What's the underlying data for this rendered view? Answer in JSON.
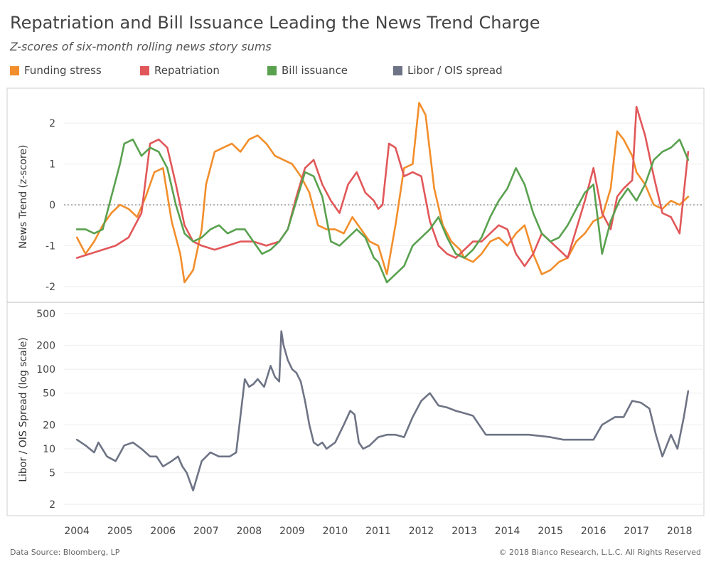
{
  "title": "Repatriation and Bill Issuance Leading the News Trend Charge",
  "subtitle": "Z-scores of six-month rolling news story sums",
  "legend": [
    {
      "label": "Funding stress",
      "color": "#f28e2b"
    },
    {
      "label": "Repatriation",
      "color": "#e15759"
    },
    {
      "label": "Bill issuance",
      "color": "#59a14f"
    },
    {
      "label": "Libor / OIS spread",
      "color": "#6e7485"
    }
  ],
  "footer": {
    "source": "Data Source: Bloomberg, LP",
    "copyright": "© 2018 Bianco Research, L.L.C. All Rights Reserved"
  },
  "chart_data": [
    {
      "type": "line",
      "ylabel": "News Trend (z-score)",
      "ylim": [
        -2.3,
        2.7
      ],
      "yticks": [
        "2",
        "1",
        "0",
        "-1",
        "-2"
      ],
      "ytick_values": [
        2,
        1,
        0,
        -1,
        -2
      ],
      "reference_line": 0,
      "series": [
        {
          "name": "Funding stress",
          "color": "#f28e2b",
          "x": [
            2004.0,
            2004.2,
            2004.4,
            2004.6,
            2004.8,
            2005.0,
            2005.2,
            2005.4,
            2005.6,
            2005.8,
            2006.0,
            2006.2,
            2006.4,
            2006.5,
            2006.7,
            2006.9,
            2007.0,
            2007.2,
            2007.4,
            2007.6,
            2007.8,
            2008.0,
            2008.2,
            2008.4,
            2008.6,
            2008.8,
            2009.0,
            2009.2,
            2009.4,
            2009.6,
            2009.8,
            2010.0,
            2010.2,
            2010.4,
            2010.6,
            2010.8,
            2011.0,
            2011.2,
            2011.4,
            2011.6,
            2011.8,
            2011.95,
            2012.1,
            2012.3,
            2012.5,
            2012.7,
            2012.9,
            2013.0,
            2013.2,
            2013.4,
            2013.6,
            2013.8,
            2014.0,
            2014.2,
            2014.4,
            2014.6,
            2014.8,
            2015.0,
            2015.2,
            2015.4,
            2015.6,
            2015.8,
            2016.0,
            2016.2,
            2016.4,
            2016.55,
            2016.7,
            2016.9,
            2017.0,
            2017.2,
            2017.4,
            2017.6,
            2017.8,
            2018.0,
            2018.2
          ],
          "y": [
            -0.8,
            -1.2,
            -0.9,
            -0.5,
            -0.2,
            0.0,
            -0.1,
            -0.3,
            0.2,
            0.8,
            0.9,
            -0.4,
            -1.2,
            -1.9,
            -1.6,
            -0.6,
            0.5,
            1.3,
            1.4,
            1.5,
            1.3,
            1.6,
            1.7,
            1.5,
            1.2,
            1.1,
            1.0,
            0.7,
            0.3,
            -0.5,
            -0.6,
            -0.6,
            -0.7,
            -0.3,
            -0.6,
            -0.9,
            -1.0,
            -1.7,
            -0.5,
            0.9,
            1.0,
            2.5,
            2.2,
            0.4,
            -0.5,
            -0.9,
            -1.1,
            -1.3,
            -1.4,
            -1.2,
            -0.9,
            -0.8,
            -1.0,
            -0.7,
            -0.5,
            -1.2,
            -1.7,
            -1.6,
            -1.4,
            -1.3,
            -0.9,
            -0.7,
            -0.4,
            -0.3,
            0.4,
            1.8,
            1.6,
            1.2,
            0.8,
            0.5,
            0.0,
            -0.1,
            0.1,
            0.0,
            0.2
          ]
        },
        {
          "name": "Repatriation",
          "color": "#e15759",
          "x": [
            2004.0,
            2004.3,
            2004.6,
            2004.9,
            2005.2,
            2005.5,
            2005.7,
            2005.9,
            2006.1,
            2006.3,
            2006.5,
            2006.7,
            2006.9,
            2007.2,
            2007.5,
            2007.8,
            2008.1,
            2008.4,
            2008.7,
            2008.9,
            2009.1,
            2009.3,
            2009.5,
            2009.7,
            2009.9,
            2010.1,
            2010.3,
            2010.5,
            2010.7,
            2010.9,
            2011.0,
            2011.1,
            2011.25,
            2011.4,
            2011.6,
            2011.8,
            2012.0,
            2012.2,
            2012.4,
            2012.6,
            2012.8,
            2013.0,
            2013.2,
            2013.4,
            2013.6,
            2013.8,
            2014.0,
            2014.2,
            2014.4,
            2014.6,
            2014.8,
            2015.0,
            2015.2,
            2015.4,
            2015.6,
            2015.8,
            2016.0,
            2016.2,
            2016.4,
            2016.55,
            2016.7,
            2016.9,
            2017.0,
            2017.2,
            2017.4,
            2017.6,
            2017.8,
            2018.0,
            2018.2
          ],
          "y": [
            -1.3,
            -1.2,
            -1.1,
            -1.0,
            -0.8,
            -0.2,
            1.5,
            1.6,
            1.4,
            0.5,
            -0.5,
            -0.9,
            -1.0,
            -1.1,
            -1.0,
            -0.9,
            -0.9,
            -1.0,
            -0.9,
            -0.6,
            0.2,
            0.9,
            1.1,
            0.5,
            0.1,
            -0.2,
            0.5,
            0.8,
            0.3,
            0.1,
            -0.1,
            0.0,
            1.5,
            1.4,
            0.7,
            0.8,
            0.7,
            -0.4,
            -1.0,
            -1.2,
            -1.3,
            -1.1,
            -0.9,
            -0.9,
            -0.7,
            -0.5,
            -0.6,
            -1.2,
            -1.5,
            -1.2,
            -0.7,
            -0.9,
            -1.1,
            -1.3,
            -0.6,
            0.1,
            0.9,
            -0.2,
            -0.6,
            0.2,
            0.4,
            0.6,
            2.4,
            1.7,
            0.7,
            -0.2,
            -0.3,
            -0.7,
            1.3
          ]
        },
        {
          "name": "Bill issuance",
          "color": "#59a14f",
          "x": [
            2004.0,
            2004.2,
            2004.4,
            2004.6,
            2004.8,
            2005.0,
            2005.1,
            2005.3,
            2005.5,
            2005.7,
            2005.9,
            2006.1,
            2006.3,
            2006.5,
            2006.7,
            2006.9,
            2007.1,
            2007.3,
            2007.5,
            2007.7,
            2007.9,
            2008.1,
            2008.3,
            2008.5,
            2008.7,
            2008.9,
            2009.1,
            2009.3,
            2009.5,
            2009.7,
            2009.9,
            2010.1,
            2010.3,
            2010.5,
            2010.7,
            2010.9,
            2011.0,
            2011.2,
            2011.4,
            2011.6,
            2011.8,
            2012.0,
            2012.2,
            2012.4,
            2012.6,
            2012.8,
            2013.0,
            2013.2,
            2013.4,
            2013.6,
            2013.8,
            2014.0,
            2014.2,
            2014.4,
            2014.6,
            2014.8,
            2015.0,
            2015.2,
            2015.4,
            2015.6,
            2015.8,
            2016.0,
            2016.2,
            2016.4,
            2016.6,
            2016.8,
            2017.0,
            2017.2,
            2017.4,
            2017.6,
            2017.8,
            2018.0,
            2018.2
          ],
          "y": [
            -0.6,
            -0.6,
            -0.7,
            -0.6,
            0.2,
            1.0,
            1.5,
            1.6,
            1.2,
            1.4,
            1.3,
            0.9,
            0.0,
            -0.7,
            -0.9,
            -0.8,
            -0.6,
            -0.5,
            -0.7,
            -0.6,
            -0.6,
            -0.9,
            -1.2,
            -1.1,
            -0.9,
            -0.6,
            0.1,
            0.8,
            0.7,
            0.2,
            -0.9,
            -1.0,
            -0.8,
            -0.6,
            -0.8,
            -1.3,
            -1.4,
            -1.9,
            -1.7,
            -1.5,
            -1.0,
            -0.8,
            -0.6,
            -0.3,
            -0.8,
            -1.2,
            -1.3,
            -1.1,
            -0.8,
            -0.3,
            0.1,
            0.4,
            0.9,
            0.5,
            -0.2,
            -0.7,
            -0.9,
            -0.8,
            -0.5,
            -0.1,
            0.3,
            0.5,
            -1.2,
            -0.4,
            0.1,
            0.4,
            0.1,
            0.5,
            1.1,
            1.3,
            1.4,
            1.6,
            1.1
          ]
        }
      ]
    },
    {
      "type": "line",
      "ylabel": "Libor / OIS Spread (log scale)",
      "scale": "log",
      "ylim": [
        1.6,
        600
      ],
      "yticks": [
        "500",
        "200",
        "100",
        "50",
        "20",
        "10",
        "5",
        "2"
      ],
      "ytick_values": [
        500,
        200,
        100,
        50,
        20,
        10,
        5,
        2
      ],
      "xlim": [
        2003.7,
        2018.4
      ],
      "xticks": [
        "2004",
        "2005",
        "2006",
        "2007",
        "2008",
        "2009",
        "2010",
        "2011",
        "2012",
        "2013",
        "2014",
        "2015",
        "2016",
        "2017",
        "2018"
      ],
      "series": [
        {
          "name": "Libor / OIS spread",
          "color": "#6e7485",
          "x": [
            2004.0,
            2004.2,
            2004.4,
            2004.5,
            2004.7,
            2004.9,
            2005.1,
            2005.3,
            2005.5,
            2005.7,
            2005.85,
            2006.0,
            2006.2,
            2006.35,
            2006.45,
            2006.55,
            2006.7,
            2006.9,
            2007.1,
            2007.3,
            2007.45,
            2007.55,
            2007.7,
            2007.9,
            2008.0,
            2008.1,
            2008.2,
            2008.35,
            2008.5,
            2008.6,
            2008.7,
            2008.75,
            2008.8,
            2008.9,
            2009.0,
            2009.1,
            2009.2,
            2009.3,
            2009.4,
            2009.5,
            2009.6,
            2009.7,
            2009.8,
            2010.0,
            2010.2,
            2010.35,
            2010.45,
            2010.55,
            2010.65,
            2010.8,
            2011.0,
            2011.2,
            2011.4,
            2011.6,
            2011.8,
            2012.0,
            2012.2,
            2012.4,
            2012.6,
            2012.8,
            2013.0,
            2013.2,
            2013.5,
            2014.0,
            2014.5,
            2015.0,
            2015.3,
            2015.6,
            2015.8,
            2016.0,
            2016.2,
            2016.5,
            2016.7,
            2016.9,
            2017.1,
            2017.3,
            2017.45,
            2017.6,
            2017.8,
            2017.95,
            2018.1,
            2018.2
          ],
          "y": [
            13,
            11,
            9,
            12,
            8,
            7,
            11,
            12,
            10,
            8,
            8,
            6,
            7,
            8,
            6,
            5,
            3,
            7,
            9,
            8,
            8,
            8,
            9,
            75,
            60,
            65,
            75,
            60,
            110,
            80,
            70,
            300,
            200,
            130,
            100,
            90,
            70,
            40,
            20,
            12,
            11,
            12,
            10,
            12,
            20,
            30,
            27,
            12,
            10,
            11,
            14,
            15,
            15,
            14,
            25,
            40,
            50,
            35,
            33,
            30,
            28,
            26,
            15,
            15,
            15,
            14,
            13,
            13,
            13,
            13,
            20,
            25,
            25,
            40,
            38,
            32,
            15,
            8,
            15,
            10,
            25,
            53
          ]
        }
      ]
    }
  ]
}
